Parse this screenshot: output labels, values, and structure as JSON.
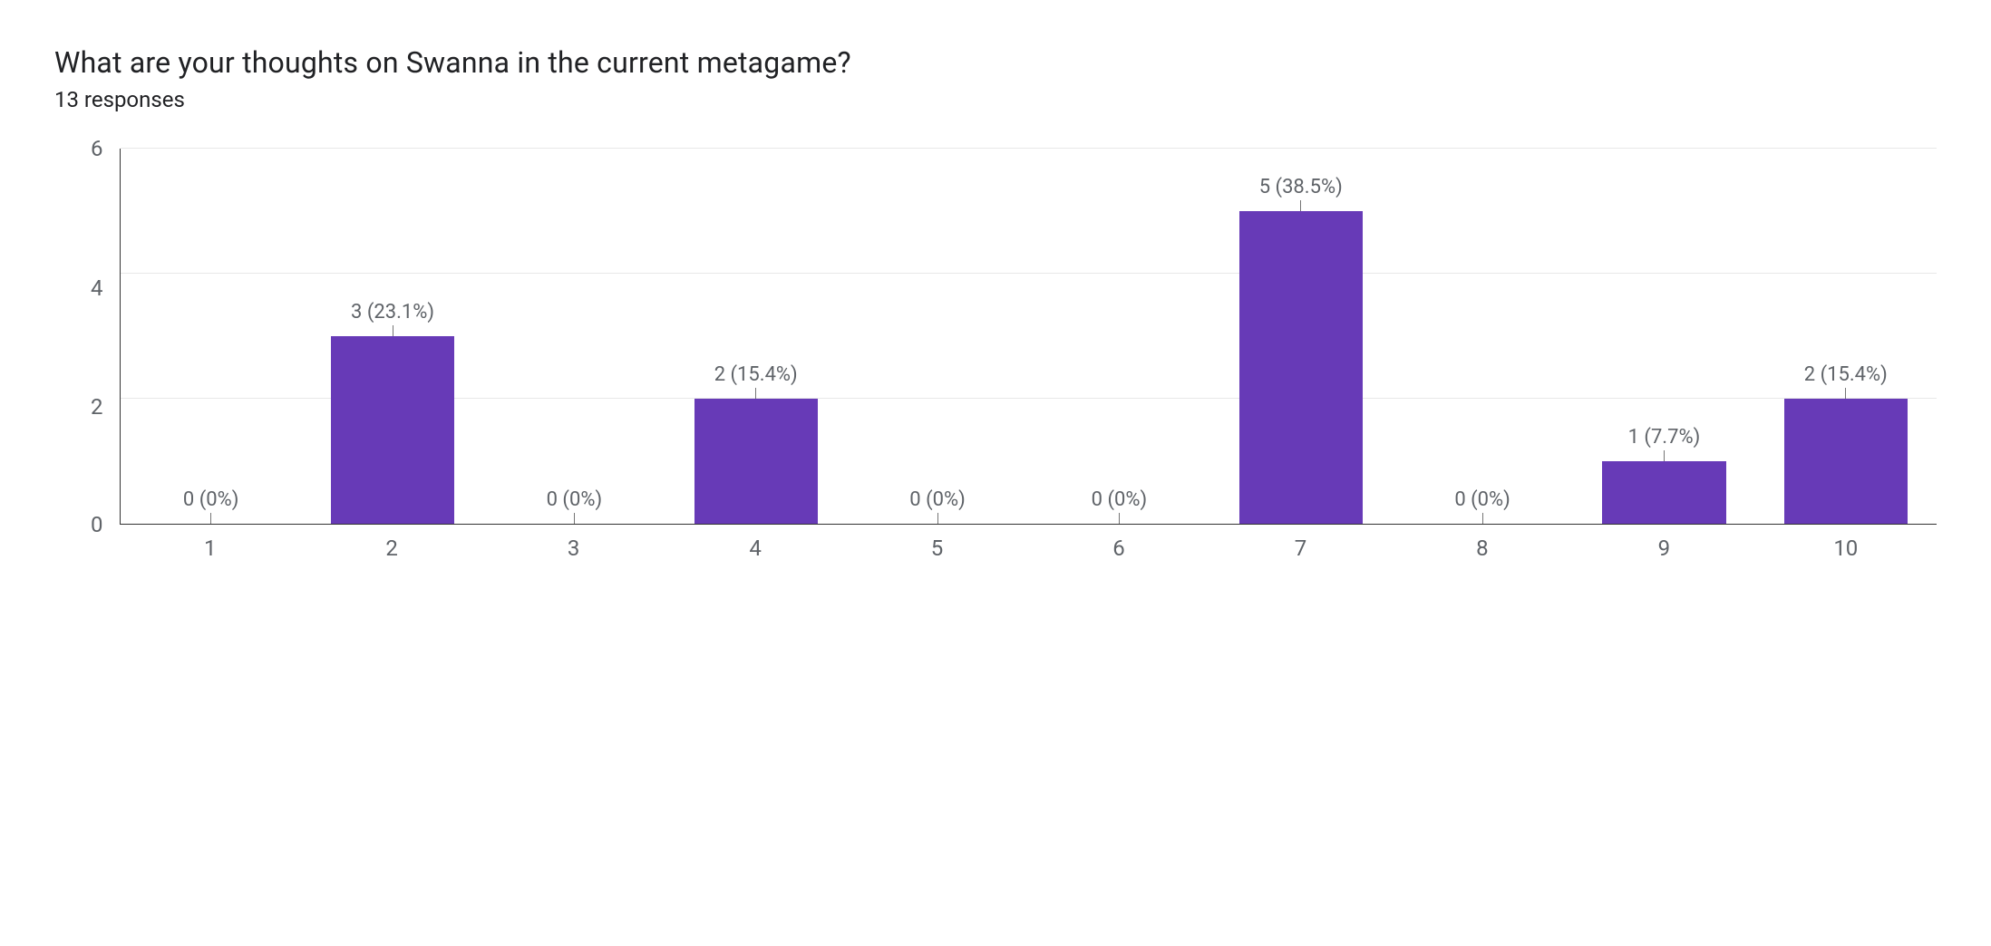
{
  "title": "What are your thoughts on Swanna in the current metagame?",
  "subtitle": "13 responses",
  "chart": {
    "type": "bar",
    "bar_color": "#673ab7",
    "background_color": "#ffffff",
    "grid_color": "#e8e8e8",
    "axis_color": "#333333",
    "tick_color": "#757575",
    "label_color": "#5f6368",
    "title_color": "#202124",
    "title_fontsize": 32,
    "subtitle_fontsize": 24,
    "label_fontsize": 24,
    "data_label_fontsize": 22,
    "ylim": [
      0,
      6
    ],
    "ytick_step": 2,
    "yticks": [
      6,
      4,
      2,
      0
    ],
    "bar_width_ratio": 0.68,
    "categories": [
      "1",
      "2",
      "3",
      "4",
      "5",
      "6",
      "7",
      "8",
      "9",
      "10"
    ],
    "values": [
      0,
      3,
      0,
      2,
      0,
      0,
      5,
      0,
      1,
      2
    ],
    "data_labels": [
      "0 (0%)",
      "3 (23.1%)",
      "0 (0%)",
      "2 (15.4%)",
      "0 (0%)",
      "0 (0%)",
      "5 (38.5%)",
      "0 (0%)",
      "1 (7.7%)",
      "2 (15.4%)"
    ]
  }
}
